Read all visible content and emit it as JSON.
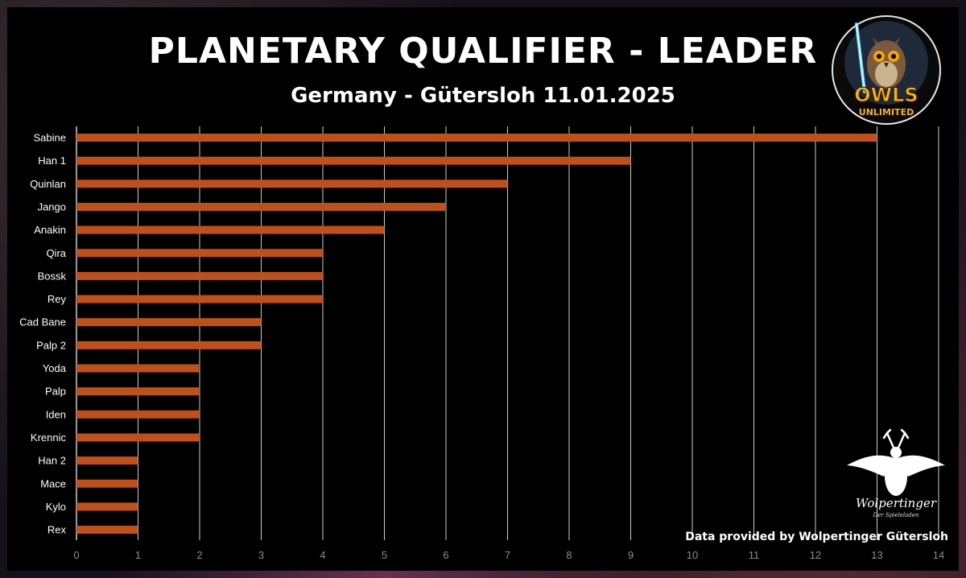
{
  "chart_data": {
    "type": "bar",
    "orientation": "horizontal",
    "title": "PLANETARY QUALIFIER - LEADER",
    "subtitle": "Germany - Gütersloh 11.01.2025",
    "categories": [
      "Sabine",
      "Han 1",
      "Quinlan",
      "Jango",
      "Anakin",
      "Qira",
      "Bossk",
      "Rey",
      "Cad Bane",
      "Palp 2",
      "Yoda",
      "Palp",
      "Iden",
      "Krennic",
      "Han 2",
      "Mace",
      "Kylo",
      "Rex"
    ],
    "values": [
      13,
      9,
      7,
      6,
      5,
      4,
      4,
      4,
      3,
      3,
      2,
      2,
      2,
      2,
      1,
      1,
      1,
      1
    ],
    "xlim": [
      0,
      14
    ],
    "xticks": [
      0,
      1,
      2,
      3,
      4,
      5,
      6,
      7,
      8,
      9,
      10,
      11,
      12,
      13,
      14
    ],
    "grid": "vertical",
    "bar_color": "#c0501a",
    "grid_color": "#ffffff",
    "background_color": "#000000"
  },
  "logos": {
    "owls": {
      "text_main": "OWLS",
      "text_sub": "UNLIMITED"
    },
    "wolpertinger": {
      "text_main": "Wolpertinger",
      "text_sub": "Der Spieleladen"
    }
  },
  "credit": "Data provided by Wolpertinger Gütersloh"
}
